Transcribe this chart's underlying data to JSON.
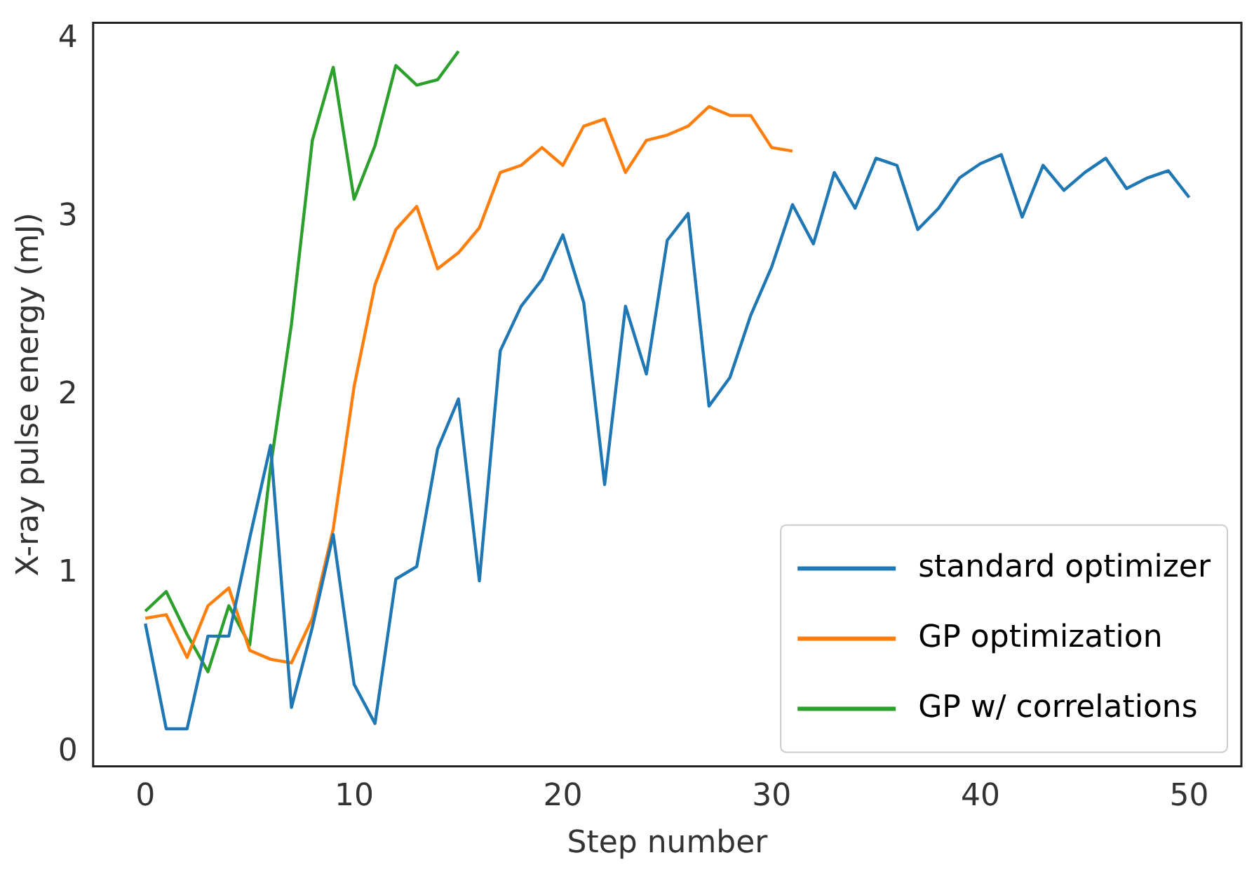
{
  "chart_data": {
    "type": "line",
    "xlabel": "Step number",
    "ylabel": "X-ray pulse energy (mJ)",
    "xlim": [
      -2.5,
      52.5
    ],
    "xticks": [
      0,
      10,
      20,
      30,
      40,
      50
    ],
    "ylim": [
      -0.08,
      4.09
    ],
    "yticks": [
      0,
      1,
      2,
      3,
      4
    ],
    "grid": false,
    "legend": "bottom right",
    "marker": "none",
    "line_style": "solid",
    "series": [
      {
        "name": "standard optimizer",
        "color": "#1f77b4",
        "x": [
          0,
          1,
          2,
          3,
          4,
          5,
          6,
          7,
          8,
          9,
          10,
          11,
          12,
          13,
          14,
          15,
          16,
          17,
          18,
          19,
          20,
          21,
          22,
          23,
          24,
          25,
          26,
          27,
          28,
          29,
          30,
          31,
          32,
          33,
          34,
          35,
          36,
          37,
          38,
          39,
          40,
          41,
          42,
          43,
          44,
          45,
          46,
          47,
          48,
          49,
          50
        ],
        "values": [
          0.72,
          0.13,
          0.13,
          0.65,
          0.65,
          1.2,
          1.72,
          0.25,
          0.7,
          1.22,
          0.38,
          0.16,
          0.97,
          1.04,
          1.7,
          1.98,
          0.96,
          2.25,
          2.5,
          2.65,
          2.9,
          2.52,
          1.5,
          2.5,
          2.12,
          2.87,
          3.02,
          1.94,
          2.1,
          2.45,
          2.72,
          3.07,
          2.85,
          3.25,
          3.05,
          3.33,
          3.29,
          2.93,
          3.05,
          3.22,
          3.3,
          3.35,
          3.0,
          3.29,
          3.15,
          3.25,
          3.33,
          3.16,
          3.22,
          3.26,
          3.11
        ]
      },
      {
        "name": "GP optimization",
        "color": "#ff7f0e",
        "x": [
          0,
          1,
          2,
          3,
          4,
          5,
          6,
          7,
          8,
          9,
          10,
          11,
          12,
          13,
          14,
          15,
          16,
          17,
          18,
          19,
          20,
          21,
          22,
          23,
          24,
          25,
          26,
          27,
          28,
          29,
          30,
          31
        ],
        "values": [
          0.75,
          0.77,
          0.53,
          0.82,
          0.92,
          0.57,
          0.52,
          0.5,
          0.75,
          1.25,
          2.05,
          2.62,
          2.93,
          3.06,
          2.71,
          2.8,
          2.94,
          3.25,
          3.29,
          3.39,
          3.29,
          3.51,
          3.55,
          3.25,
          3.43,
          3.46,
          3.51,
          3.62,
          3.57,
          3.57,
          3.39,
          3.37
        ]
      },
      {
        "name": "GP w/ correlations",
        "color": "#2ca02c",
        "x": [
          0,
          1,
          2,
          3,
          4,
          5,
          6,
          7,
          8,
          9,
          10,
          11,
          12,
          13,
          14,
          15
        ],
        "values": [
          0.79,
          0.9,
          0.66,
          0.45,
          0.82,
          0.6,
          1.6,
          2.4,
          3.43,
          3.84,
          3.1,
          3.4,
          3.85,
          3.74,
          3.77,
          3.93
        ]
      }
    ]
  }
}
